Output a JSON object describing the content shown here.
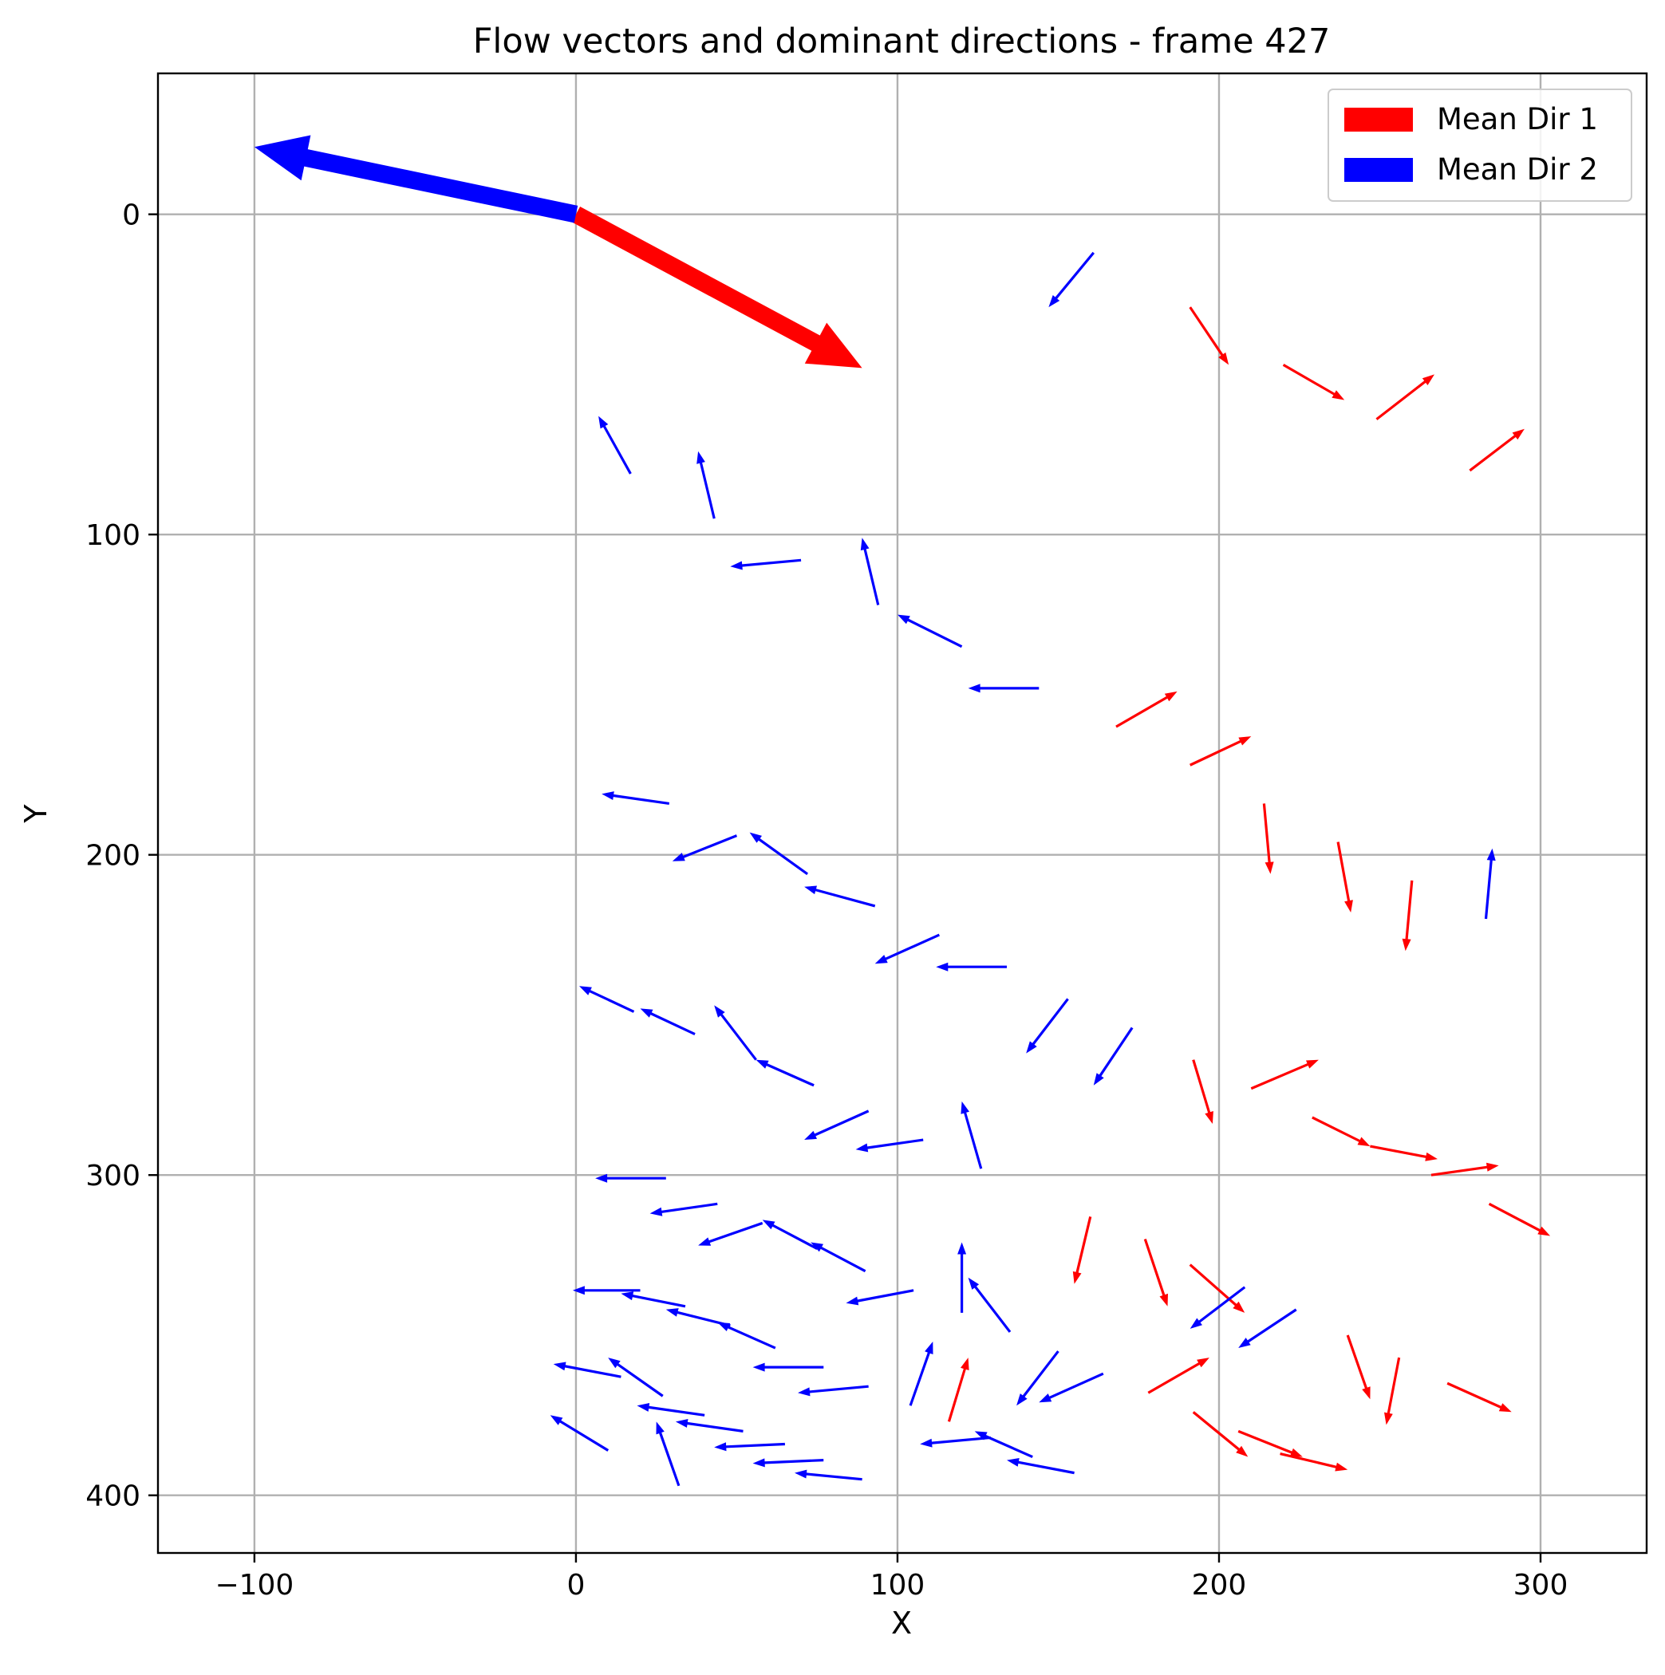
{
  "chart_data": {
    "type": "quiver",
    "title": "Flow vectors and dominant directions - frame 427",
    "xlabel": "X",
    "ylabel": "Y",
    "xlim": [
      -130,
      333
    ],
    "ylim": [
      418,
      -44
    ],
    "y_inverted": true,
    "grid": true,
    "x_ticks": [
      -100,
      0,
      100,
      200,
      300
    ],
    "y_ticks": [
      0,
      100,
      200,
      300,
      400
    ],
    "x_tick_labels": [
      "−100",
      "0",
      "100",
      "200",
      "300"
    ],
    "y_tick_labels": [
      "0",
      "100",
      "200",
      "300",
      "400"
    ],
    "legend": {
      "position": "top-right",
      "entries": [
        {
          "label": "Mean Dir 1",
          "color": "#ff0000"
        },
        {
          "label": "Mean Dir 2",
          "color": "#0000ff"
        }
      ]
    },
    "colors": {
      "dir1": "#ff0000",
      "dir2": "#0000ff"
    },
    "mean_arrows": [
      {
        "name": "Mean Dir 1",
        "x": 0,
        "y": 0,
        "dx": 89,
        "dy": 48,
        "color": "#ff0000"
      },
      {
        "name": "Mean Dir 2",
        "x": 0,
        "y": 0,
        "dx": -100,
        "dy": -21,
        "color": "#0000ff"
      }
    ],
    "vectors": [
      {
        "x": 161,
        "y": 12,
        "dx": -14,
        "dy": 17,
        "group": 2
      },
      {
        "x": 191,
        "y": 29,
        "dx": 12,
        "dy": 18,
        "group": 1
      },
      {
        "x": 220,
        "y": 47,
        "dx": 19,
        "dy": 11,
        "group": 1
      },
      {
        "x": 249,
        "y": 64,
        "dx": 18,
        "dy": -14,
        "group": 1
      },
      {
        "x": 278,
        "y": 80,
        "dx": 17,
        "dy": -13,
        "group": 1
      },
      {
        "x": 17,
        "y": 81,
        "dx": -10,
        "dy": -18,
        "group": 2
      },
      {
        "x": 43,
        "y": 95,
        "dx": -5,
        "dy": -21,
        "group": 2
      },
      {
        "x": 70,
        "y": 108,
        "dx": -22,
        "dy": 2,
        "group": 2
      },
      {
        "x": 94,
        "y": 122,
        "dx": -5,
        "dy": -21,
        "group": 2
      },
      {
        "x": 120,
        "y": 135,
        "dx": -20,
        "dy": -10,
        "group": 2
      },
      {
        "x": 144,
        "y": 148,
        "dx": -22,
        "dy": 0,
        "group": 2
      },
      {
        "x": 168,
        "y": 160,
        "dx": 19,
        "dy": -11,
        "group": 1
      },
      {
        "x": 191,
        "y": 172,
        "dx": 19,
        "dy": -9,
        "group": 1
      },
      {
        "x": 29,
        "y": 184,
        "dx": -21,
        "dy": -3,
        "group": 2
      },
      {
        "x": 214,
        "y": 184,
        "dx": 2,
        "dy": 22,
        "group": 1
      },
      {
        "x": 237,
        "y": 196,
        "dx": 4,
        "dy": 22,
        "group": 1
      },
      {
        "x": 50,
        "y": 194,
        "dx": -20,
        "dy": 8,
        "group": 2
      },
      {
        "x": 72,
        "y": 206,
        "dx": -18,
        "dy": -13,
        "group": 2
      },
      {
        "x": 260,
        "y": 208,
        "dx": -2,
        "dy": 22,
        "group": 1
      },
      {
        "x": 93,
        "y": 216,
        "dx": -22,
        "dy": -6,
        "group": 2
      },
      {
        "x": 283,
        "y": 220,
        "dx": 2,
        "dy": -22,
        "group": 2
      },
      {
        "x": 113,
        "y": 225,
        "dx": -20,
        "dy": 9,
        "group": 2
      },
      {
        "x": 134,
        "y": 235,
        "dx": -22,
        "dy": 0,
        "group": 2
      },
      {
        "x": 18,
        "y": 249,
        "dx": -17,
        "dy": -8,
        "group": 2
      },
      {
        "x": 37,
        "y": 256,
        "dx": -17,
        "dy": -8,
        "group": 2
      },
      {
        "x": 153,
        "y": 245,
        "dx": -13,
        "dy": 17,
        "group": 2
      },
      {
        "x": 173,
        "y": 254,
        "dx": -12,
        "dy": 18,
        "group": 2
      },
      {
        "x": 56,
        "y": 264,
        "dx": -13,
        "dy": -17,
        "group": 2
      },
      {
        "x": 74,
        "y": 272,
        "dx": -18,
        "dy": -8,
        "group": 2
      },
      {
        "x": 192,
        "y": 264,
        "dx": 6,
        "dy": 20,
        "group": 1
      },
      {
        "x": 210,
        "y": 273,
        "dx": 21,
        "dy": -9,
        "group": 1
      },
      {
        "x": 91,
        "y": 280,
        "dx": -20,
        "dy": 9,
        "group": 2
      },
      {
        "x": 229,
        "y": 282,
        "dx": 18,
        "dy": 9,
        "group": 1
      },
      {
        "x": 126,
        "y": 298,
        "dx": -6,
        "dy": -21,
        "group": 2
      },
      {
        "x": 108,
        "y": 289,
        "dx": -21,
        "dy": 3,
        "group": 2
      },
      {
        "x": 247,
        "y": 291,
        "dx": 21,
        "dy": 4,
        "group": 1
      },
      {
        "x": 266,
        "y": 300,
        "dx": 21,
        "dy": -3,
        "group": 1
      },
      {
        "x": 28,
        "y": 301,
        "dx": -22,
        "dy": 0,
        "group": 2
      },
      {
        "x": 284,
        "y": 309,
        "dx": 19,
        "dy": 10,
        "group": 1
      },
      {
        "x": 44,
        "y": 309,
        "dx": -21,
        "dy": 3,
        "group": 2
      },
      {
        "x": 160,
        "y": 313,
        "dx": -5,
        "dy": 21,
        "group": 1
      },
      {
        "x": 58,
        "y": 315,
        "dx": -20,
        "dy": 7,
        "group": 2
      },
      {
        "x": 75,
        "y": 323,
        "dx": -17,
        "dy": -9,
        "group": 2
      },
      {
        "x": 177,
        "y": 320,
        "dx": 7,
        "dy": 21,
        "group": 1
      },
      {
        "x": 90,
        "y": 330,
        "dx": -17,
        "dy": -9,
        "group": 2
      },
      {
        "x": 191,
        "y": 328,
        "dx": 17,
        "dy": 15,
        "group": 1
      },
      {
        "x": 120,
        "y": 343,
        "dx": 0,
        "dy": -22,
        "group": 2
      },
      {
        "x": 105,
        "y": 336,
        "dx": -21,
        "dy": 4,
        "group": 2
      },
      {
        "x": 20,
        "y": 336,
        "dx": -21,
        "dy": 0,
        "group": 2
      },
      {
        "x": 34,
        "y": 341,
        "dx": -20,
        "dy": -4,
        "group": 2
      },
      {
        "x": 208,
        "y": 335,
        "dx": -17,
        "dy": 13,
        "group": 2
      },
      {
        "x": 135,
        "y": 349,
        "dx": -13,
        "dy": -17,
        "group": 2
      },
      {
        "x": 48,
        "y": 347,
        "dx": -20,
        "dy": -5,
        "group": 2
      },
      {
        "x": 62,
        "y": 354,
        "dx": -18,
        "dy": -8,
        "group": 2
      },
      {
        "x": 224,
        "y": 342,
        "dx": -18,
        "dy": 12,
        "group": 2
      },
      {
        "x": 240,
        "y": 350,
        "dx": 7,
        "dy": 20,
        "group": 1
      },
      {
        "x": 256,
        "y": 357,
        "dx": -4,
        "dy": 21,
        "group": 1
      },
      {
        "x": 150,
        "y": 355,
        "dx": -13,
        "dy": 17,
        "group": 2
      },
      {
        "x": 77,
        "y": 360,
        "dx": -22,
        "dy": 0,
        "group": 2
      },
      {
        "x": 164,
        "y": 362,
        "dx": -20,
        "dy": 9,
        "group": 2
      },
      {
        "x": 178,
        "y": 368,
        "dx": 19,
        "dy": -11,
        "group": 1
      },
      {
        "x": 271,
        "y": 365,
        "dx": 20,
        "dy": 9,
        "group": 1
      },
      {
        "x": 91,
        "y": 366,
        "dx": -22,
        "dy": 2,
        "group": 2
      },
      {
        "x": 104,
        "y": 372,
        "dx": 7,
        "dy": -20,
        "group": 2
      },
      {
        "x": 14,
        "y": 363,
        "dx": -21,
        "dy": -4,
        "group": 2
      },
      {
        "x": 27,
        "y": 369,
        "dx": -17,
        "dy": -12,
        "group": 2
      },
      {
        "x": 116,
        "y": 377,
        "dx": 6,
        "dy": -20,
        "group": 1
      },
      {
        "x": 40,
        "y": 375,
        "dx": -21,
        "dy": -3,
        "group": 2
      },
      {
        "x": 52,
        "y": 380,
        "dx": -21,
        "dy": -3,
        "group": 2
      },
      {
        "x": 192,
        "y": 374,
        "dx": 17,
        "dy": 14,
        "group": 1
      },
      {
        "x": 206,
        "y": 380,
        "dx": 20,
        "dy": 8,
        "group": 1
      },
      {
        "x": 219,
        "y": 387,
        "dx": 21,
        "dy": 5,
        "group": 1
      },
      {
        "x": 129,
        "y": 382,
        "dx": -22,
        "dy": 2,
        "group": 2
      },
      {
        "x": 142,
        "y": 388,
        "dx": -18,
        "dy": -8,
        "group": 2
      },
      {
        "x": 155,
        "y": 393,
        "dx": -21,
        "dy": -4,
        "group": 2
      },
      {
        "x": 65,
        "y": 384,
        "dx": -22,
        "dy": 1,
        "group": 2
      },
      {
        "x": 77,
        "y": 389,
        "dx": -22,
        "dy": 1,
        "group": 2
      },
      {
        "x": 89,
        "y": 395,
        "dx": -21,
        "dy": -2,
        "group": 2
      },
      {
        "x": 10,
        "y": 386,
        "dx": -18,
        "dy": -11,
        "group": 2
      },
      {
        "x": 32,
        "y": 397,
        "dx": -7,
        "dy": -20,
        "group": 2
      }
    ]
  }
}
